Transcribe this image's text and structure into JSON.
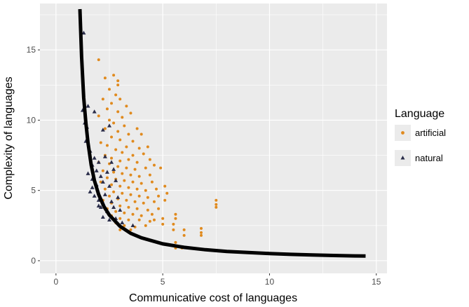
{
  "chart_data": {
    "type": "scatter",
    "xlabel": "Communicative cost of languages",
    "ylabel": "Complexity of languages",
    "xlim": [
      -0.75,
      15.5
    ],
    "ylim": [
      -0.9,
      18.3
    ],
    "x_ticks": [
      "0",
      "5",
      "10",
      "15"
    ],
    "y_ticks": [
      "0",
      "5",
      "10",
      "15"
    ],
    "grid": true,
    "legend": {
      "title": "Language",
      "placement": "right",
      "entries": [
        "artificial",
        "natural"
      ]
    },
    "colors": {
      "artificial": "#e08a1e",
      "natural": "#2a2d4a",
      "curve": "#000000",
      "panel": "#ebebeb",
      "grid": "#ffffff"
    },
    "series": [
      {
        "name": "artificial",
        "marker": "circle",
        "points": [
          [
            2.0,
            14.3
          ],
          [
            2.3,
            13.0
          ],
          [
            2.7,
            13.2
          ],
          [
            2.9,
            12.5
          ],
          [
            2.5,
            12.2
          ],
          [
            2.8,
            11.8
          ],
          [
            3.0,
            11.5
          ],
          [
            2.6,
            11.2
          ],
          [
            2.2,
            11.5
          ],
          [
            3.3,
            11.0
          ],
          [
            2.4,
            10.8
          ],
          [
            2.9,
            10.6
          ],
          [
            3.1,
            10.2
          ],
          [
            2.5,
            10.0
          ],
          [
            2.0,
            10.3
          ],
          [
            3.5,
            10.5
          ],
          [
            2.7,
            9.8
          ],
          [
            3.2,
            9.6
          ],
          [
            3.8,
            9.4
          ],
          [
            2.3,
            9.4
          ],
          [
            2.9,
            9.2
          ],
          [
            3.4,
            9.0
          ],
          [
            4.0,
            9.0
          ],
          [
            2.6,
            8.8
          ],
          [
            3.0,
            8.6
          ],
          [
            3.6,
            8.5
          ],
          [
            2.1,
            8.4
          ],
          [
            2.4,
            8.2
          ],
          [
            3.3,
            8.1
          ],
          [
            3.9,
            8.0
          ],
          [
            4.3,
            8.1
          ],
          [
            2.8,
            7.9
          ],
          [
            3.1,
            7.7
          ],
          [
            3.6,
            7.5
          ],
          [
            4.1,
            7.6
          ],
          [
            2.3,
            7.5
          ],
          [
            2.6,
            7.3
          ],
          [
            3.0,
            7.1
          ],
          [
            3.4,
            7.2
          ],
          [
            3.8,
            7.0
          ],
          [
            4.4,
            7.2
          ],
          [
            2.0,
            7.0
          ],
          [
            2.5,
            6.9
          ],
          [
            2.9,
            6.7
          ],
          [
            3.3,
            6.6
          ],
          [
            3.7,
            6.5
          ],
          [
            4.2,
            6.6
          ],
          [
            4.6,
            6.8
          ],
          [
            2.2,
            6.4
          ],
          [
            2.7,
            6.3
          ],
          [
            3.1,
            6.2
          ],
          [
            3.5,
            6.1
          ],
          [
            3.9,
            6.0
          ],
          [
            4.4,
            6.1
          ],
          [
            4.9,
            6.6
          ],
          [
            2.4,
            5.9
          ],
          [
            2.8,
            5.8
          ],
          [
            3.2,
            5.7
          ],
          [
            3.6,
            5.6
          ],
          [
            4.0,
            5.5
          ],
          [
            4.5,
            5.6
          ],
          [
            5.1,
            5.3
          ],
          [
            2.1,
            5.6
          ],
          [
            2.6,
            5.4
          ],
          [
            3.0,
            5.3
          ],
          [
            3.4,
            5.2
          ],
          [
            3.8,
            5.1
          ],
          [
            4.2,
            5.0
          ],
          [
            4.7,
            5.1
          ],
          [
            2.3,
            5.1
          ],
          [
            2.7,
            4.9
          ],
          [
            3.1,
            4.8
          ],
          [
            3.5,
            4.7
          ],
          [
            3.9,
            4.6
          ],
          [
            4.3,
            4.5
          ],
          [
            4.8,
            4.6
          ],
          [
            5.2,
            4.8
          ],
          [
            2.5,
            4.6
          ],
          [
            2.9,
            4.4
          ],
          [
            3.3,
            4.3
          ],
          [
            3.7,
            4.2
          ],
          [
            4.1,
            4.1
          ],
          [
            4.6,
            4.2
          ],
          [
            5.1,
            4.3
          ],
          [
            2.2,
            4.3
          ],
          [
            2.6,
            4.1
          ],
          [
            3.0,
            3.9
          ],
          [
            3.4,
            3.8
          ],
          [
            3.8,
            3.7
          ],
          [
            4.3,
            3.6
          ],
          [
            4.8,
            3.7
          ],
          [
            2.4,
            3.7
          ],
          [
            2.8,
            3.5
          ],
          [
            3.2,
            3.4
          ],
          [
            3.6,
            3.3
          ],
          [
            4.0,
            3.2
          ],
          [
            4.5,
            3.3
          ],
          [
            5.0,
            3.0
          ],
          [
            2.6,
            3.2
          ],
          [
            3.0,
            3.0
          ],
          [
            3.4,
            2.9
          ],
          [
            3.9,
            2.9
          ],
          [
            4.4,
            2.8
          ],
          [
            2.8,
            2.7
          ],
          [
            3.2,
            2.5
          ],
          [
            3.7,
            2.4
          ],
          [
            4.2,
            2.5
          ],
          [
            5.0,
            2.6
          ],
          [
            3.5,
            2.2
          ],
          [
            3.0,
            2.2
          ],
          [
            4.6,
            2.9
          ],
          [
            5.5,
            2.2
          ],
          [
            5.5,
            2.6
          ],
          [
            5.6,
            3.3
          ],
          [
            5.6,
            3.0
          ],
          [
            5.6,
            1.3
          ],
          [
            5.8,
            1.0
          ],
          [
            5.9,
            0.9
          ],
          [
            6.0,
            1.8
          ],
          [
            6.0,
            2.2
          ],
          [
            6.8,
            1.8
          ],
          [
            6.8,
            2.0
          ],
          [
            6.8,
            2.3
          ],
          [
            7.5,
            3.8
          ],
          [
            7.5,
            4.0
          ],
          [
            7.5,
            4.3
          ],
          [
            5.6,
            0.9
          ],
          [
            2.9,
            12.8
          ]
        ]
      },
      {
        "name": "natural",
        "marker": "triangle",
        "points": [
          [
            1.3,
            16.2
          ],
          [
            1.25,
            10.7
          ],
          [
            1.35,
            9.8
          ],
          [
            1.45,
            9.5
          ],
          [
            1.5,
            11.0
          ],
          [
            1.8,
            10.6
          ],
          [
            2.2,
            9.3
          ],
          [
            2.5,
            9.6
          ],
          [
            1.4,
            8.5
          ],
          [
            1.6,
            7.8
          ],
          [
            1.8,
            7.3
          ],
          [
            2.0,
            7.0
          ],
          [
            2.3,
            7.4
          ],
          [
            2.6,
            7.0
          ],
          [
            1.7,
            6.8
          ],
          [
            1.9,
            6.4
          ],
          [
            2.1,
            6.0
          ],
          [
            2.4,
            6.3
          ],
          [
            2.7,
            6.5
          ],
          [
            1.5,
            6.2
          ],
          [
            1.7,
            5.8
          ],
          [
            1.9,
            5.4
          ],
          [
            2.2,
            5.6
          ],
          [
            2.5,
            5.3
          ],
          [
            2.8,
            5.7
          ],
          [
            1.6,
            4.9
          ],
          [
            1.8,
            4.6
          ],
          [
            2.0,
            4.3
          ],
          [
            2.3,
            4.7
          ],
          [
            2.6,
            4.2
          ],
          [
            2.9,
            4.5
          ],
          [
            2.1,
            3.8
          ],
          [
            2.4,
            3.5
          ],
          [
            2.7,
            3.8
          ],
          [
            3.0,
            3.6
          ],
          [
            2.2,
            3.1
          ],
          [
            2.5,
            2.9
          ],
          [
            2.8,
            3.0
          ],
          [
            3.1,
            2.7
          ],
          [
            3.6,
            2.5
          ],
          [
            2.0,
            3.9
          ],
          [
            1.7,
            5.2
          ]
        ]
      }
    ],
    "curve": {
      "label": "",
      "x_start": 1.12,
      "x_end": 14.5,
      "points": [
        [
          1.12,
          17.9
        ],
        [
          1.2,
          14.5
        ],
        [
          1.3,
          11.6
        ],
        [
          1.4,
          9.8
        ],
        [
          1.5,
          8.4
        ],
        [
          1.65,
          6.8
        ],
        [
          1.8,
          5.7
        ],
        [
          2.0,
          4.7
        ],
        [
          2.25,
          3.85
        ],
        [
          2.5,
          3.25
        ],
        [
          3.0,
          2.45
        ],
        [
          3.5,
          1.95
        ],
        [
          4.0,
          1.63
        ],
        [
          5.0,
          1.2
        ],
        [
          6.0,
          0.95
        ],
        [
          7.0,
          0.78
        ],
        [
          8.0,
          0.66
        ],
        [
          9.0,
          0.58
        ],
        [
          10.0,
          0.51
        ],
        [
          11.0,
          0.45
        ],
        [
          12.0,
          0.41
        ],
        [
          13.0,
          0.37
        ],
        [
          14.0,
          0.34
        ],
        [
          14.5,
          0.33
        ]
      ]
    }
  }
}
